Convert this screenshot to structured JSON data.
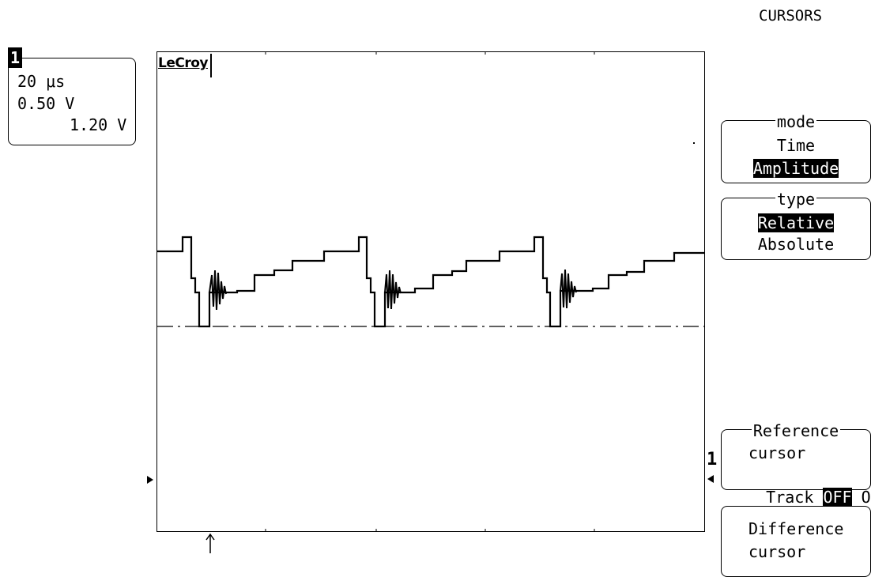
{
  "menu": {
    "title": "CURSORS"
  },
  "channel": {
    "number": "1",
    "timebase": "20 μs",
    "volts_per_div": "0.50 V",
    "offset": "1.20 V"
  },
  "logo": "LeCroy",
  "softkeys": {
    "mode": {
      "header": "mode",
      "options": [
        "Time",
        "Amplitude"
      ],
      "selected": "Amplitude"
    },
    "type": {
      "header": "type",
      "options": [
        "Relative",
        "Absolute"
      ],
      "selected": "Relative"
    },
    "reference_cursor": {
      "header": "Reference",
      "line2": "cursor",
      "track_label": "Track",
      "off": "OFF",
      "on": "On",
      "selected": "OFF"
    },
    "difference_cursor": {
      "line1": "Difference",
      "line2": "cursor"
    }
  },
  "colors": {
    "background": "#ffffff",
    "trace": "#000000"
  }
}
